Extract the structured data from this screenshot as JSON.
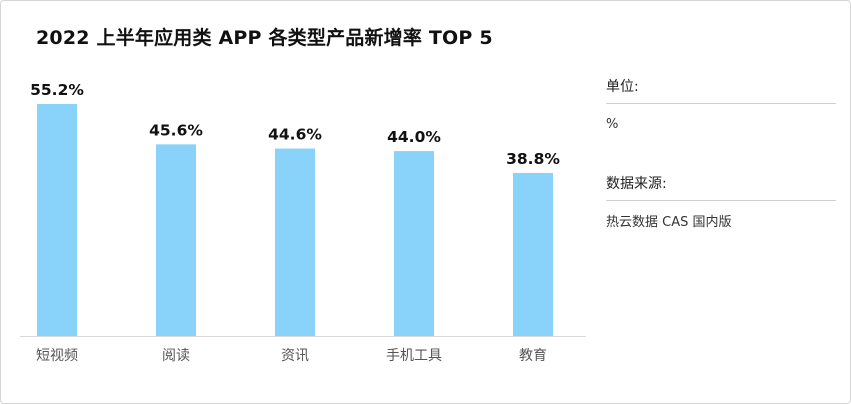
{
  "title": "2022 上半年应用类 APP 各类型产品新增率 TOP 5",
  "legend_panel": {
    "unit_label": "单位:",
    "unit_value": "%",
    "source_label": "数据来源:",
    "source_value": "热云数据 CAS 国内版"
  },
  "colors": {
    "bar": "#89d3fb",
    "baseline": "#d9d9d9",
    "text": "#111111"
  },
  "chart_data": {
    "type": "bar",
    "title": "2022 上半年应用类 APP 各类型产品新增率 TOP 5",
    "categories": [
      "短视频",
      "阅读",
      "资讯",
      "手机工具",
      "教育"
    ],
    "values": [
      55.2,
      45.6,
      44.6,
      44.0,
      38.8
    ],
    "value_labels": [
      "55.2%",
      "45.6%",
      "44.6%",
      "44.0%",
      "38.8%"
    ],
    "ylim": [
      0,
      55.2
    ],
    "grid": false,
    "legend": "none"
  }
}
